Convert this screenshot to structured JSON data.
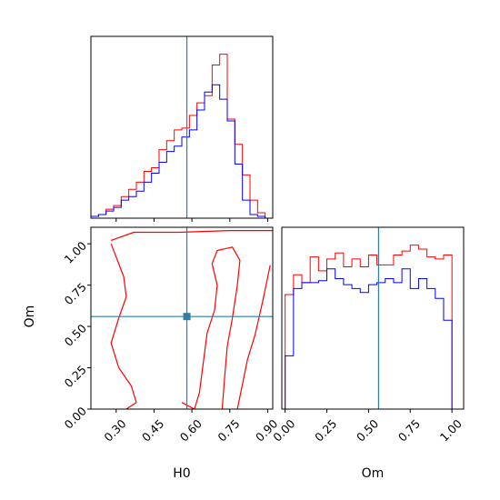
{
  "colors": {
    "red": "#ff0000",
    "blue": "#0000ff",
    "truth": "#2f7ea6",
    "frame": "#000000"
  },
  "chart_data": {
    "type": "corner",
    "truth": {
      "H0": 0.58,
      "Om": 0.56
    },
    "panels": [
      {
        "id": "hist_H0",
        "type": "histogram",
        "xlim": [
          0.2,
          0.92
        ],
        "x_ticks": [
          0.3,
          0.45,
          0.6,
          0.75,
          0.9
        ],
        "bin_edges": [
          0.2,
          0.23,
          0.26,
          0.29,
          0.32,
          0.35,
          0.38,
          0.41,
          0.44,
          0.47,
          0.5,
          0.53,
          0.56,
          0.59,
          0.62,
          0.65,
          0.68,
          0.71,
          0.74,
          0.77,
          0.8,
          0.83,
          0.86,
          0.89
        ],
        "series": [
          {
            "color": "red",
            "counts": [
              0.01,
              0.02,
              0.05,
              0.07,
              0.12,
              0.16,
              0.2,
              0.26,
              0.28,
              0.38,
              0.43,
              0.49,
              0.5,
              0.57,
              0.64,
              0.68,
              0.85,
              0.91,
              0.55,
              0.41,
              0.24,
              0.1,
              0.03
            ]
          },
          {
            "color": "blue",
            "counts": [
              0.01,
              0.02,
              0.04,
              0.06,
              0.1,
              0.12,
              0.15,
              0.2,
              0.25,
              0.31,
              0.37,
              0.4,
              0.45,
              0.49,
              0.6,
              0.7,
              0.74,
              0.66,
              0.54,
              0.3,
              0.1,
              0.02,
              0.01
            ]
          }
        ]
      },
      {
        "id": "contour_H0_Om",
        "type": "contour",
        "xlim": [
          0.2,
          0.92
        ],
        "ylim": [
          0.0,
          1.1
        ],
        "x_ticks": [
          0.3,
          0.45,
          0.6,
          0.75,
          0.9
        ],
        "y_ticks": [
          0.0,
          0.25,
          0.5,
          0.75,
          1.0
        ],
        "contours": [
          {
            "color": "red",
            "points": [
              [
                0.28,
                1.02
              ],
              [
                0.37,
                1.07
              ],
              [
                0.55,
                1.07
              ],
              [
                0.75,
                1.08
              ],
              [
                0.92,
                1.08
              ]
            ]
          },
          {
            "color": "red",
            "points": [
              [
                0.28,
                1.0
              ],
              [
                0.31,
                0.88
              ],
              [
                0.33,
                0.8
              ],
              [
                0.34,
                0.68
              ],
              [
                0.31,
                0.55
              ],
              [
                0.28,
                0.4
              ],
              [
                0.31,
                0.25
              ],
              [
                0.36,
                0.14
              ],
              [
                0.38,
                0.04
              ],
              [
                0.34,
                0.0
              ]
            ]
          },
          {
            "color": "red",
            "points": [
              [
                0.56,
                0.04
              ],
              [
                0.61,
                0.0
              ],
              [
                0.63,
                0.1
              ],
              [
                0.64,
                0.22
              ],
              [
                0.65,
                0.34
              ],
              [
                0.66,
                0.46
              ],
              [
                0.69,
                0.6
              ],
              [
                0.7,
                0.75
              ],
              [
                0.68,
                0.88
              ],
              [
                0.7,
                0.96
              ],
              [
                0.76,
                0.98
              ],
              [
                0.79,
                0.9
              ],
              [
                0.78,
                0.75
              ],
              [
                0.76,
                0.55
              ],
              [
                0.74,
                0.38
              ],
              [
                0.73,
                0.2
              ],
              [
                0.72,
                0.0
              ]
            ]
          },
          {
            "color": "red",
            "points": [
              [
                0.91,
                0.87
              ],
              [
                0.88,
                0.65
              ],
              [
                0.85,
                0.45
              ],
              [
                0.82,
                0.3
              ],
              [
                0.8,
                0.15
              ],
              [
                0.78,
                0.0
              ]
            ]
          }
        ]
      },
      {
        "id": "hist_Om",
        "type": "histogram",
        "xlim": [
          -0.02,
          1.07
        ],
        "x_ticks": [
          0.0,
          0.25,
          0.5,
          0.75,
          1.0
        ],
        "bin_edges": [
          0.0,
          0.05,
          0.1,
          0.15,
          0.2,
          0.25,
          0.3,
          0.35,
          0.4,
          0.45,
          0.5,
          0.55,
          0.6,
          0.65,
          0.7,
          0.75,
          0.8,
          0.85,
          0.9,
          0.95,
          1.0
        ],
        "series": [
          {
            "color": "red",
            "counts": [
              0.58,
              0.68,
              0.64,
              0.77,
              0.7,
              0.76,
              0.79,
              0.72,
              0.76,
              0.72,
              0.78,
              0.73,
              0.73,
              0.78,
              0.8,
              0.83,
              0.81,
              0.77,
              0.76,
              0.78
            ]
          },
          {
            "color": "blue",
            "counts": [
              0.27,
              0.61,
              0.64,
              0.64,
              0.65,
              0.71,
              0.66,
              0.63,
              0.61,
              0.59,
              0.63,
              0.64,
              0.66,
              0.64,
              0.71,
              0.61,
              0.66,
              0.61,
              0.56,
              0.45
            ]
          }
        ]
      }
    ],
    "xlabel_left": "H0",
    "xlabel_right": "Om",
    "ylabel_left": "Om"
  }
}
